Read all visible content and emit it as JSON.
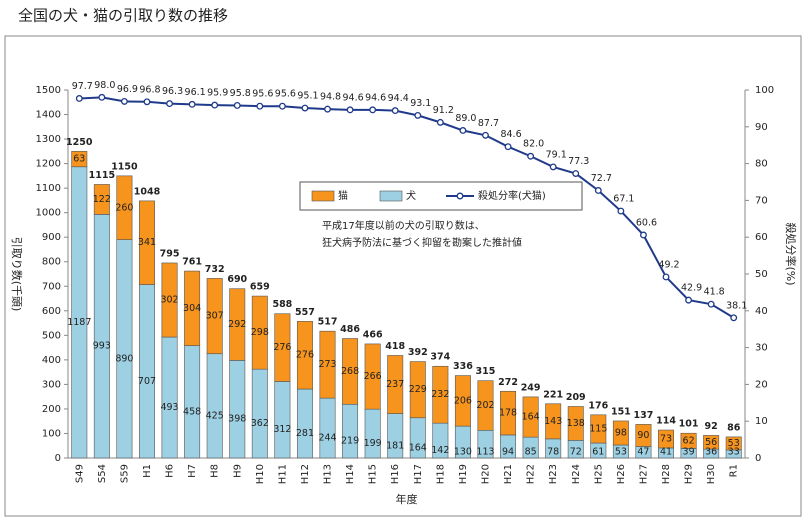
{
  "chart_data": {
    "type": "stacked-bar-line",
    "title": "全国の犬・猫の引取り数の推移",
    "ylabel": "引取り数(千頭)",
    "y2label": "殺処分率(%)",
    "xlabel": "年度",
    "annotation": [
      "平成17年度以前の犬の引取り数は、",
      "狂犬病予防法に基づく抑留を勘案した推計値"
    ],
    "categories": [
      "S49",
      "S54",
      "S59",
      "H1",
      "H6",
      "H7",
      "H8",
      "H9",
      "H10",
      "H11",
      "H12",
      "H13",
      "H14",
      "H15",
      "H16",
      "H17",
      "H18",
      "H19",
      "H20",
      "H21",
      "H22",
      "H23",
      "H24",
      "H25",
      "H26",
      "H27",
      "H28",
      "H29",
      "H30",
      "R1"
    ],
    "series": [
      {
        "name": "猫",
        "color": "#f7941d",
        "type": "bar",
        "axis": "y",
        "values": [
          63,
          122,
          260,
          341,
          302,
          304,
          307,
          292,
          298,
          276,
          276,
          273,
          268,
          266,
          237,
          229,
          232,
          206,
          202,
          178,
          164,
          143,
          138,
          115,
          98,
          90,
          73,
          62,
          56,
          53
        ]
      },
      {
        "name": "犬",
        "color": "#9dd0e2",
        "type": "bar",
        "axis": "y",
        "values": [
          1187,
          993,
          890,
          707,
          493,
          458,
          425,
          398,
          362,
          312,
          281,
          244,
          219,
          199,
          181,
          164,
          142,
          130,
          113,
          94,
          85,
          78,
          72,
          61,
          53,
          47,
          41,
          39,
          36,
          33
        ]
      },
      {
        "name": "殺処分率(犬猫)",
        "color": "#1f3a8a",
        "type": "line",
        "axis": "y2",
        "values": [
          97.7,
          98.0,
          96.9,
          96.8,
          96.3,
          96.1,
          95.9,
          95.8,
          95.6,
          95.6,
          95.1,
          94.8,
          94.6,
          94.6,
          94.4,
          93.1,
          91.2,
          89.0,
          87.7,
          84.6,
          82.0,
          79.1,
          77.3,
          72.7,
          67.1,
          60.6,
          49.2,
          42.9,
          41.8,
          38.1
        ],
        "value_labels": [
          "97.7",
          "98.0",
          "96.9",
          "96.8",
          "96.3",
          "96.1",
          "95.9",
          "95.8",
          "95.6",
          "95.6",
          "95.1",
          "94.8",
          "94.6",
          "94.6",
          "94.4",
          "93.1",
          "91.2",
          "89.0",
          "87.7",
          "84.6",
          "82.0",
          "79.1",
          "77.3",
          "72.7",
          "67.1",
          "60.6",
          "49.2",
          "42.9",
          "41.8",
          "38.1"
        ]
      }
    ],
    "totals": [
      1250,
      1115,
      1150,
      1048,
      795,
      761,
      732,
      690,
      659,
      588,
      557,
      517,
      486,
      466,
      418,
      392,
      374,
      336,
      315,
      272,
      249,
      221,
      209,
      176,
      151,
      137,
      114,
      101,
      92,
      86
    ],
    "ylim": [
      0,
      1500
    ],
    "yticks": [
      0,
      100,
      200,
      300,
      400,
      500,
      600,
      700,
      800,
      900,
      1000,
      1100,
      1200,
      1300,
      1400,
      1500
    ],
    "y2lim": [
      0,
      100
    ],
    "y2ticks": [
      0,
      10,
      20,
      30,
      40,
      50,
      60,
      70,
      80,
      90,
      100
    ]
  }
}
